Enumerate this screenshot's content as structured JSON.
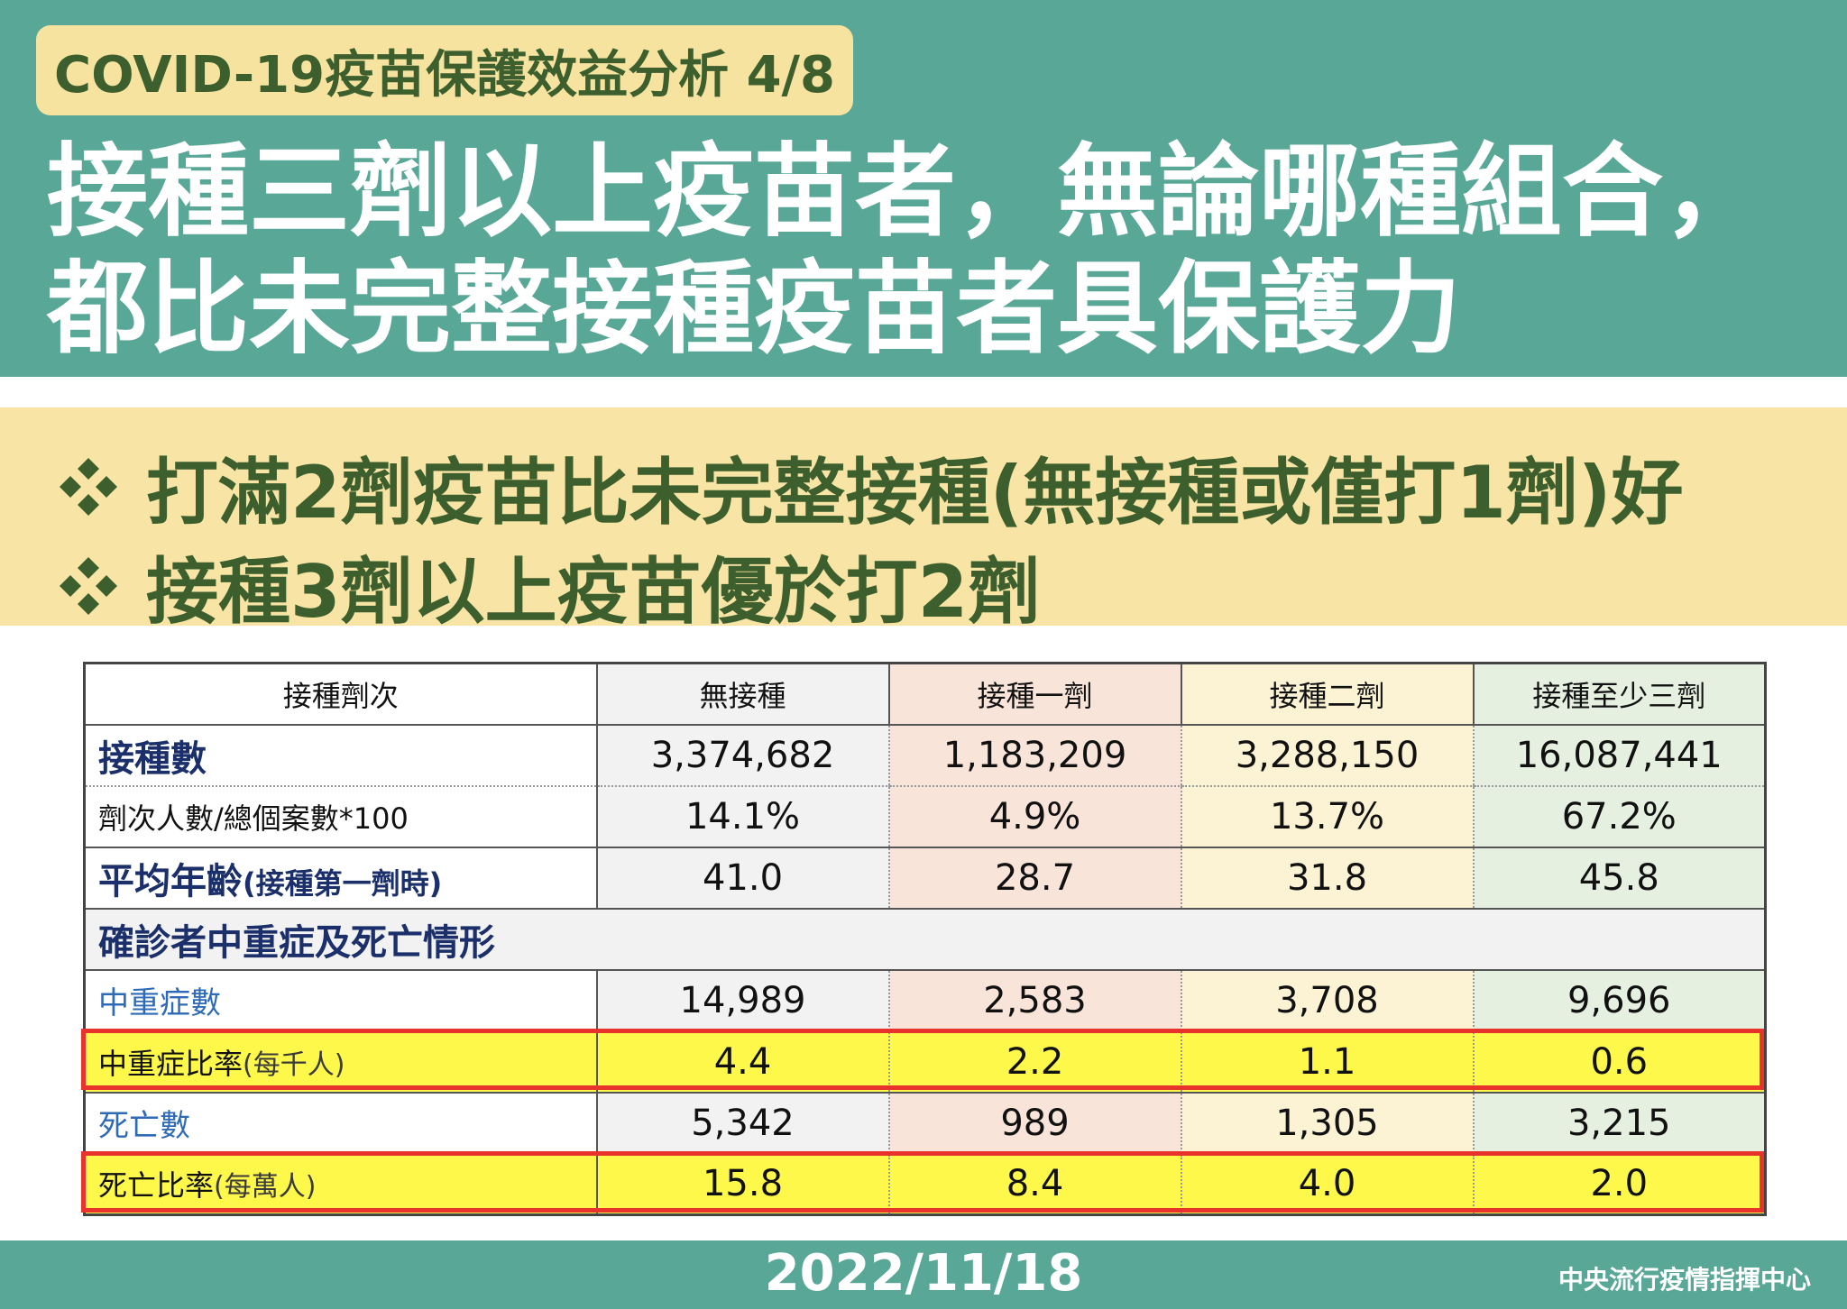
{
  "header": {
    "tag": "COVID-19疫苗保護效益分析 4/8",
    "title_line1": "接種三劑以上疫苗者，無論哪種組合，",
    "title_line2": "都比未完整接種疫苗者具保護力"
  },
  "bullets": [
    "打滿2劑疫苗比未完整接種(無接種或僅打1劑)好",
    "接種3劑以上疫苗優於打2劑"
  ],
  "table": {
    "headers": [
      "接種劑次",
      "無接種",
      "接種一劑",
      "接種二劑",
      "接種至少三劑"
    ],
    "vaccinated": {
      "label": "接種數",
      "values": [
        "3,374,682",
        "1,183,209",
        "3,288,150",
        "16,087,441"
      ]
    },
    "ratio": {
      "label": "劑次人數/總個案數*100",
      "values": [
        "14.1%",
        "4.9%",
        "13.7%",
        "67.2%"
      ]
    },
    "age": {
      "label": "平均年齡",
      "sub": "(接種第一劑時)",
      "values": [
        "41.0",
        "28.7",
        "31.8",
        "45.8"
      ]
    },
    "section": "確診者中重症及死亡情形",
    "severe": {
      "label": "中重症數",
      "values": [
        "14,989",
        "2,583",
        "3,708",
        "9,696"
      ]
    },
    "severe_rate": {
      "label": "中重症比率",
      "sub": "(每千人)",
      "values": [
        "4.4",
        "2.2",
        "1.1",
        "0.6"
      ]
    },
    "deaths": {
      "label": "死亡數",
      "values": [
        "5,342",
        "989",
        "1,305",
        "3,215"
      ]
    },
    "death_rate": {
      "label": "死亡比率",
      "sub": "(每萬人)",
      "values": [
        "15.8",
        "8.4",
        "4.0",
        "2.0"
      ]
    }
  },
  "footer": {
    "date": "2022/11/18",
    "org": "中央流行疫情指揮中心"
  },
  "colors": {
    "teal": "#58a797",
    "band": "#f8e4a4",
    "highlight": "#fdf84a",
    "red_border": "#e8332c"
  },
  "icons": [
    "diamond-bullet-icon"
  ]
}
